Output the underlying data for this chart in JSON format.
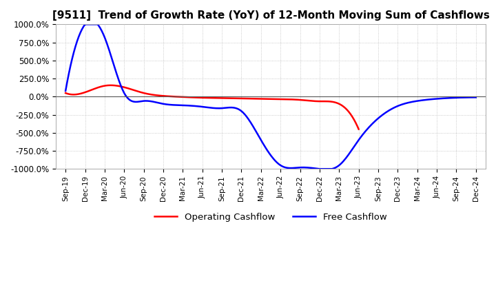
{
  "title": "[9511]  Trend of Growth Rate (YoY) of 12-Month Moving Sum of Cashflows",
  "title_fontsize": 11,
  "ylim": [
    -1000,
    1000
  ],
  "yticks": [
    -1000,
    -750,
    -500,
    -250,
    0,
    250,
    500,
    750,
    1000
  ],
  "ytick_labels": [
    "-1000.0%",
    "-750.0%",
    "-500.0%",
    "-250.0%",
    "0.0%",
    "250.0%",
    "500.0%",
    "750.0%",
    "1000.0%"
  ],
  "background_color": "#ffffff",
  "grid_color": "#bbbbbb",
  "operating_color": "#ff0000",
  "free_color": "#0000ff",
  "legend_labels": [
    "Operating Cashflow",
    "Free Cashflow"
  ],
  "x_labels": [
    "Sep-19",
    "Dec-19",
    "Mar-20",
    "Jun-20",
    "Sep-20",
    "Dec-20",
    "Mar-21",
    "Jun-21",
    "Sep-21",
    "Dec-21",
    "Mar-22",
    "Jun-22",
    "Sep-22",
    "Dec-22",
    "Mar-23",
    "Jun-23",
    "Sep-23",
    "Dec-23",
    "Mar-24",
    "Jun-24",
    "Sep-24",
    "Dec-24"
  ],
  "operating_cashflow": [
    50,
    60,
    150,
    130,
    50,
    10,
    -5,
    -15,
    -20,
    -25,
    -30,
    -35,
    -45,
    -65,
    -100,
    -450,
    null,
    null,
    null,
    null,
    null,
    null
  ],
  "free_cashflow": [
    80,
    1000,
    820,
    50,
    -60,
    -100,
    -120,
    -140,
    -160,
    -200,
    -600,
    -950,
    -980,
    -1000,
    -950,
    -600,
    -300,
    -130,
    -60,
    -30,
    -15,
    -10
  ]
}
